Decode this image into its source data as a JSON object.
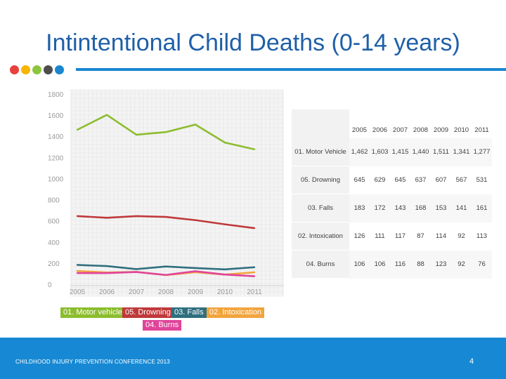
{
  "slide": {
    "title": "Intintentional Child Deaths (0-14 years)",
    "footer_text": "CHILDHOOD INJURY PREVENTION CONFERENCE 2013",
    "page_number": "4",
    "dot_colors": [
      "#e8413c",
      "#f7b500",
      "#8cc63f",
      "#4d4d4d",
      "#1a86d0"
    ],
    "accent_color": "#1a86d0"
  },
  "chart_data": {
    "type": "line",
    "title": "",
    "xlabel": "",
    "ylabel": "",
    "x": [
      "2005",
      "2006",
      "2007",
      "2008",
      "2009",
      "2010",
      "2011"
    ],
    "yticks": [
      "0",
      "200",
      "400",
      "600",
      "800",
      "1000",
      "1200",
      "1400",
      "1600",
      "1800"
    ],
    "ylim": [
      0,
      1800
    ],
    "grid": true,
    "series": [
      {
        "name": "01. Motor vehicle",
        "color": "#8cbd2f",
        "values": [
          1462,
          1603,
          1415,
          1440,
          1511,
          1341,
          1277
        ]
      },
      {
        "name": "05. Drowning",
        "color": "#c0393b",
        "values": [
          645,
          629,
          645,
          637,
          607,
          567,
          531
        ]
      },
      {
        "name": "03. Falls",
        "color": "#2f6f7f",
        "values": [
          183,
          172,
          143,
          168,
          153,
          141,
          161
        ]
      },
      {
        "name": "02. Intoxication",
        "color": "#f2a43c",
        "values": [
          126,
          111,
          117,
          87,
          114,
          92,
          113
        ]
      },
      {
        "name": "04. Burns",
        "color": "#e0449a",
        "values": [
          106,
          106,
          116,
          88,
          123,
          92,
          76
        ]
      }
    ]
  },
  "table": {
    "years": [
      "2005",
      "2006",
      "2007",
      "2008",
      "2009",
      "2010",
      "2011"
    ],
    "rows": [
      {
        "label": "01. Motor Vehicle",
        "values": [
          "1,462",
          "1,603",
          "1,415",
          "1,440",
          "1,511",
          "1,341",
          "1,277"
        ]
      },
      {
        "label": "05. Drowning",
        "values": [
          "645",
          "629",
          "645",
          "637",
          "607",
          "567",
          "531"
        ]
      },
      {
        "label": "03. Falls",
        "values": [
          "183",
          "172",
          "143",
          "168",
          "153",
          "141",
          "161"
        ]
      },
      {
        "label": "02. Intoxication",
        "values": [
          "126",
          "111",
          "117",
          "87",
          "114",
          "92",
          "113"
        ]
      },
      {
        "label": "04. Burns",
        "values": [
          "106",
          "106",
          "116",
          "88",
          "123",
          "92",
          "76"
        ]
      }
    ]
  }
}
